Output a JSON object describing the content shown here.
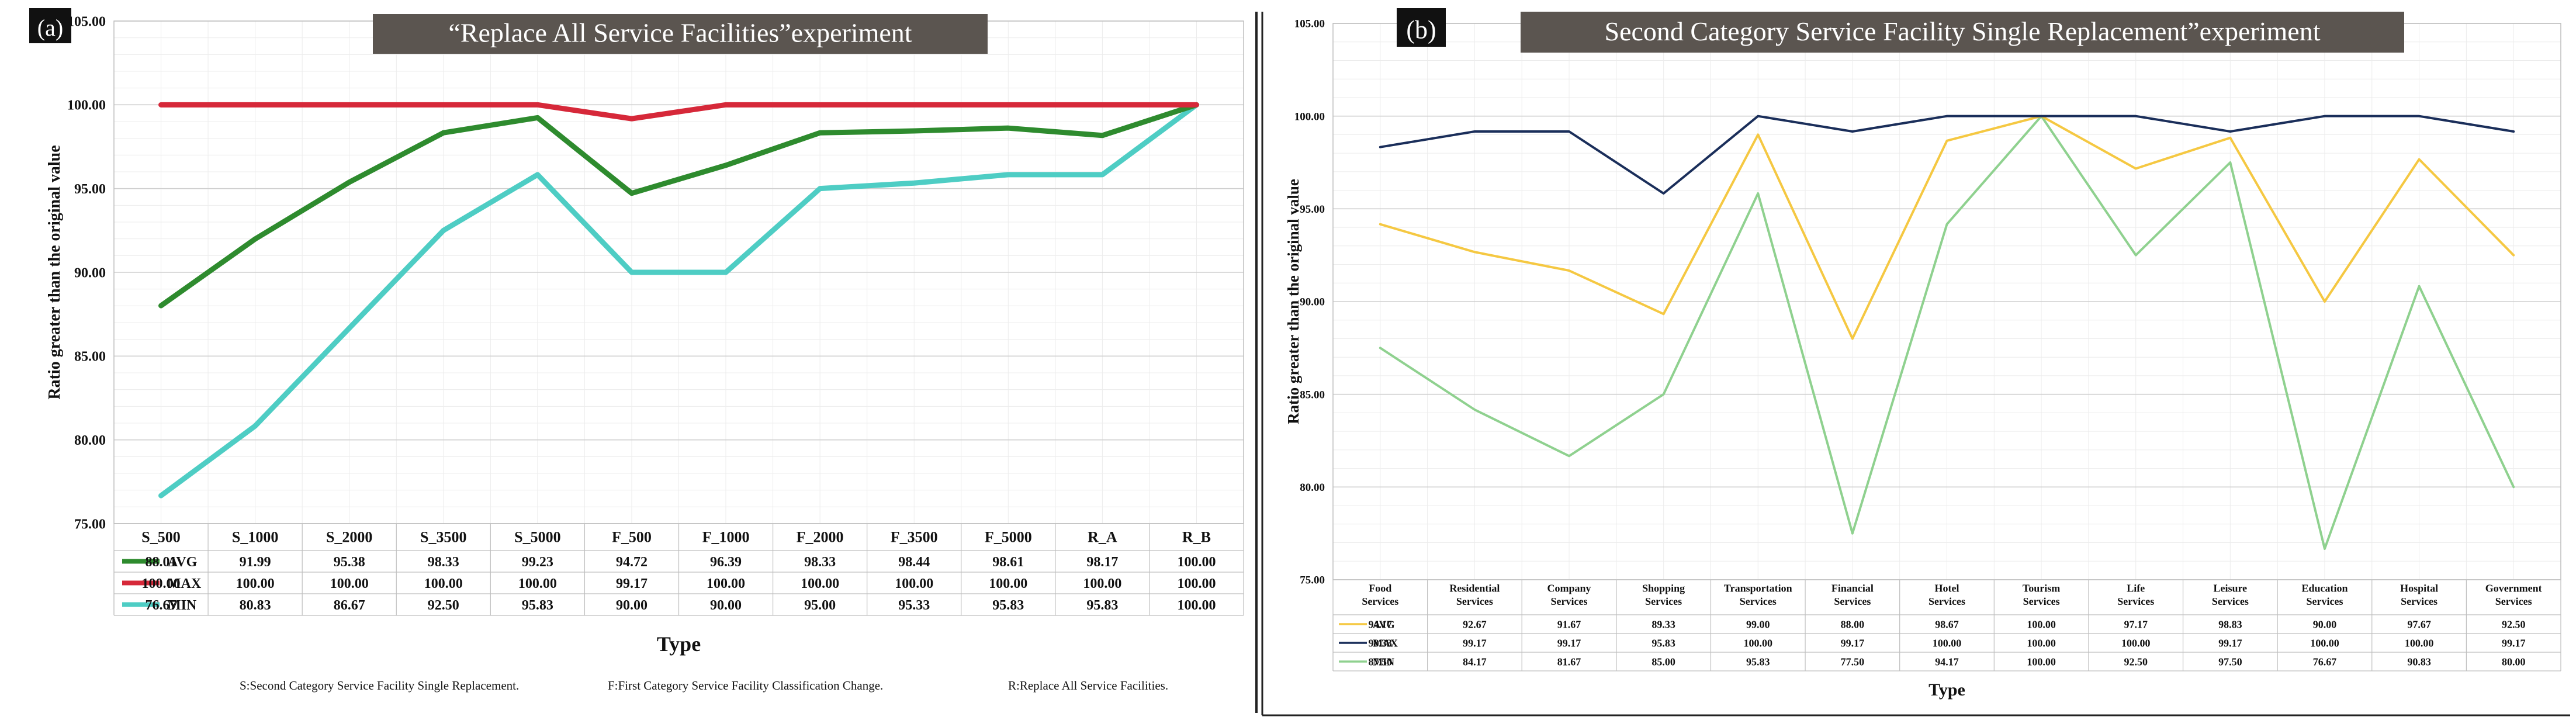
{
  "colors": {
    "avg_a": "#2e8b2e",
    "max_a": "#d62839",
    "min_a": "#4ecdc4",
    "avg_b": "#f5c842",
    "max_b": "#1a2e5a",
    "min_b": "#8fd18f",
    "title_bg": "#5b5550",
    "grid": "#d9d9d9"
  },
  "chart_data": [
    {
      "type": "line",
      "panel_label": "(a)",
      "title": "“Replace All Service Facilities”experiment",
      "xlabel": "Type",
      "ylabel": "Ratio greater than the original value",
      "ylim": [
        75,
        105
      ],
      "y_ticks": [
        "105.00",
        "100.00",
        "95.00",
        "90.00",
        "85.00",
        "80.00",
        "75.00"
      ],
      "categories": [
        "S_500",
        "S_1000",
        "S_2000",
        "S_3500",
        "S_5000",
        "F_500",
        "F_1000",
        "F_2000",
        "F_3500",
        "F_5000",
        "R_A",
        "R_B"
      ],
      "series": [
        {
          "name": "AVG",
          "values": [
            88.01,
            91.99,
            95.38,
            98.33,
            99.23,
            94.72,
            96.39,
            98.33,
            98.44,
            98.61,
            98.17,
            100.0
          ],
          "labels": [
            "88.01",
            "91.99",
            "95.38",
            "98.33",
            "99.23",
            "94.72",
            "96.39",
            "98.33",
            "98.44",
            "98.61",
            "98.17",
            "100.00"
          ]
        },
        {
          "name": "MAX",
          "values": [
            100.0,
            100.0,
            100.0,
            100.0,
            100.0,
            99.17,
            100.0,
            100.0,
            100.0,
            100.0,
            100.0,
            100.0
          ],
          "labels": [
            "100.00",
            "100.00",
            "100.00",
            "100.00",
            "100.00",
            "99.17",
            "100.00",
            "100.00",
            "100.00",
            "100.00",
            "100.00",
            "100.00"
          ]
        },
        {
          "name": "MIN",
          "values": [
            76.67,
            80.83,
            86.67,
            92.5,
            95.83,
            90.0,
            90.0,
            95.0,
            95.33,
            95.83,
            95.83,
            100.0
          ],
          "labels": [
            "76.67",
            "80.83",
            "86.67",
            "92.50",
            "95.83",
            "90.00",
            "90.00",
            "95.00",
            "95.33",
            "95.83",
            "95.83",
            "100.00"
          ]
        }
      ],
      "footnotes": [
        "S:Second Category Service Facility Single Replacement.",
        "F:First Category Service Facility Classification Change.",
        "R:Replace All Service Facilities."
      ]
    },
    {
      "type": "line",
      "panel_label": "(b)",
      "title": "Second Category Service Facility Single Replacement”experiment",
      "xlabel": "Type",
      "ylabel": "Ratio greater than the original value",
      "ylim": [
        75,
        105
      ],
      "y_ticks": [
        "105.00",
        "100.00",
        "95.00",
        "90.00",
        "85.00",
        "80.00",
        "75.00"
      ],
      "categories": [
        [
          "Food",
          "Services"
        ],
        [
          "Residential",
          "Services"
        ],
        [
          "Company",
          "Services"
        ],
        [
          "Shopping",
          "Services"
        ],
        [
          "Transportation",
          "Services"
        ],
        [
          "Financial",
          "Services"
        ],
        [
          "Hotel",
          "Services"
        ],
        [
          "Tourism",
          "Services"
        ],
        [
          "Life",
          "Services"
        ],
        [
          "Leisure",
          "Services"
        ],
        [
          "Education",
          "Services"
        ],
        [
          "Hospital",
          "Services"
        ],
        [
          "Government",
          "Services"
        ]
      ],
      "series": [
        {
          "name": "AVG",
          "values": [
            94.17,
            92.67,
            91.67,
            89.33,
            99.0,
            88.0,
            98.67,
            100.0,
            97.17,
            98.83,
            90.0,
            97.67,
            92.5
          ],
          "labels": [
            "94.17",
            "92.67",
            "91.67",
            "89.33",
            "99.00",
            "88.00",
            "98.67",
            "100.00",
            "97.17",
            "98.83",
            "90.00",
            "97.67",
            "92.50"
          ]
        },
        {
          "name": "MAX",
          "values": [
            98.33,
            99.17,
            99.17,
            95.83,
            100.0,
            99.17,
            100.0,
            100.0,
            100.0,
            99.17,
            100.0,
            100.0,
            99.17
          ],
          "labels": [
            "98.33",
            "99.17",
            "99.17",
            "95.83",
            "100.00",
            "99.17",
            "100.00",
            "100.00",
            "100.00",
            "99.17",
            "100.00",
            "100.00",
            "99.17"
          ]
        },
        {
          "name": "MIN",
          "values": [
            87.5,
            84.17,
            81.67,
            85.0,
            95.83,
            77.5,
            94.17,
            100.0,
            92.5,
            97.5,
            76.67,
            90.83,
            80.0
          ],
          "labels": [
            "87.50",
            "84.17",
            "81.67",
            "85.00",
            "95.83",
            "77.50",
            "94.17",
            "100.00",
            "92.50",
            "97.50",
            "76.67",
            "90.83",
            "80.00"
          ]
        }
      ]
    }
  ]
}
